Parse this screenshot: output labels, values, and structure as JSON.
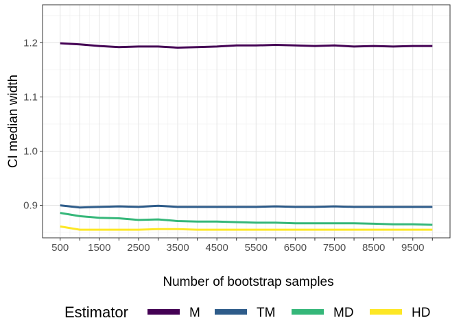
{
  "chart_data": {
    "type": "line",
    "xlabel": "Number of bootstrap samples",
    "ylabel": "CI median width",
    "x": [
      500,
      1000,
      1500,
      2000,
      2500,
      3000,
      3500,
      4000,
      4500,
      5000,
      5500,
      6000,
      6500,
      7000,
      7500,
      8000,
      8500,
      9000,
      9500,
      10000
    ],
    "x_tick_values": [
      500,
      1000,
      1500,
      2000,
      2500,
      3000,
      3500,
      4000,
      4500,
      5000,
      5500,
      6000,
      6500,
      7000,
      7500,
      8000,
      8500,
      9000,
      9500,
      10000
    ],
    "x_tick_labels": [
      "500",
      "",
      "1500",
      "",
      "2500",
      "",
      "3500",
      "",
      "4500",
      "",
      "5500",
      "",
      "6500",
      "",
      "7500",
      "",
      "8500",
      "",
      "9500",
      ""
    ],
    "y_ticks": [
      0.9,
      1.0,
      1.1,
      1.2
    ],
    "y_tick_labels": [
      "0.9",
      "1.0",
      "1.1",
      "1.2"
    ],
    "xlim": [
      50,
      10450
    ],
    "ylim": [
      0.84,
      1.27
    ],
    "grid": true,
    "legend_position": "bottom",
    "legend_title": "Estimator",
    "series": [
      {
        "name": "M",
        "color": "#440154",
        "values": [
          1.199,
          1.197,
          1.194,
          1.192,
          1.193,
          1.193,
          1.191,
          1.192,
          1.193,
          1.195,
          1.195,
          1.196,
          1.195,
          1.194,
          1.195,
          1.193,
          1.194,
          1.193,
          1.194,
          1.194
        ]
      },
      {
        "name": "TM",
        "color": "#2E5C8A",
        "values": [
          0.9,
          0.896,
          0.897,
          0.898,
          0.897,
          0.899,
          0.897,
          0.897,
          0.897,
          0.897,
          0.897,
          0.898,
          0.897,
          0.897,
          0.898,
          0.897,
          0.897,
          0.897,
          0.897,
          0.897
        ]
      },
      {
        "name": "MD",
        "color": "#35B779",
        "values": [
          0.886,
          0.88,
          0.877,
          0.876,
          0.873,
          0.874,
          0.871,
          0.87,
          0.87,
          0.869,
          0.868,
          0.868,
          0.867,
          0.867,
          0.867,
          0.867,
          0.866,
          0.865,
          0.865,
          0.864
        ]
      },
      {
        "name": "HD",
        "color": "#FDE725",
        "values": [
          0.861,
          0.855,
          0.855,
          0.855,
          0.855,
          0.856,
          0.856,
          0.855,
          0.855,
          0.855,
          0.855,
          0.855,
          0.855,
          0.855,
          0.855,
          0.855,
          0.855,
          0.855,
          0.855,
          0.855
        ]
      }
    ]
  }
}
